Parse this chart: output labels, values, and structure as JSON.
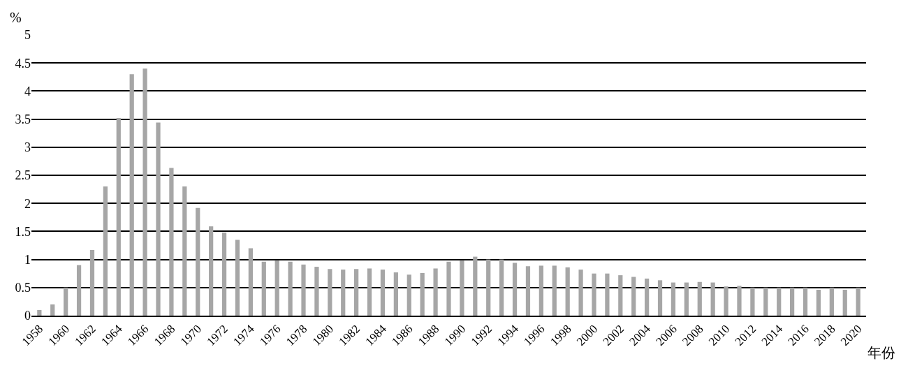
{
  "chart_data": {
    "type": "bar",
    "xlabel": "年份",
    "ylabel": "%",
    "categories": [
      "1958",
      null,
      "1960",
      null,
      "1962",
      null,
      "1964",
      null,
      "1966",
      null,
      "1968",
      null,
      "1970",
      null,
      "1972",
      null,
      "1974",
      null,
      "1976",
      null,
      "1978",
      null,
      "1980",
      null,
      "1982",
      null,
      "1984",
      null,
      "1986",
      null,
      "1988",
      null,
      "1990",
      null,
      "1992",
      null,
      "1994",
      null,
      "1996",
      null,
      "1998",
      null,
      "2000",
      null,
      "2002",
      null,
      "2004",
      null,
      "2006",
      null,
      "2008",
      null,
      "2010",
      null,
      "2012",
      null,
      "2014",
      null,
      "2016",
      null,
      "2018",
      null,
      "2020"
    ],
    "values": [
      0.1,
      0.2,
      0.5,
      0.9,
      1.17,
      2.3,
      3.52,
      4.3,
      4.4,
      3.44,
      2.63,
      2.3,
      1.92,
      1.59,
      1.48,
      1.35,
      1.2,
      0.96,
      0.98,
      0.96,
      0.91,
      0.87,
      0.83,
      0.82,
      0.83,
      0.84,
      0.82,
      0.77,
      0.73,
      0.76,
      0.84,
      0.96,
      0.98,
      1.05,
      1.0,
      1.0,
      0.94,
      0.88,
      0.89,
      0.89,
      0.86,
      0.82,
      0.75,
      0.75,
      0.72,
      0.69,
      0.66,
      0.63,
      0.59,
      0.59,
      0.6,
      0.59,
      0.52,
      0.53,
      0.5,
      0.5,
      0.5,
      0.5,
      0.5,
      0.46,
      0.5,
      0.46,
      0.5
    ],
    "color": "#a6a6a6",
    "ylim": [
      0,
      5
    ],
    "yticks": [
      0,
      0.5,
      1,
      1.5,
      2,
      2.5,
      3,
      3.5,
      4,
      4.5,
      5
    ],
    "grid": "y"
  }
}
